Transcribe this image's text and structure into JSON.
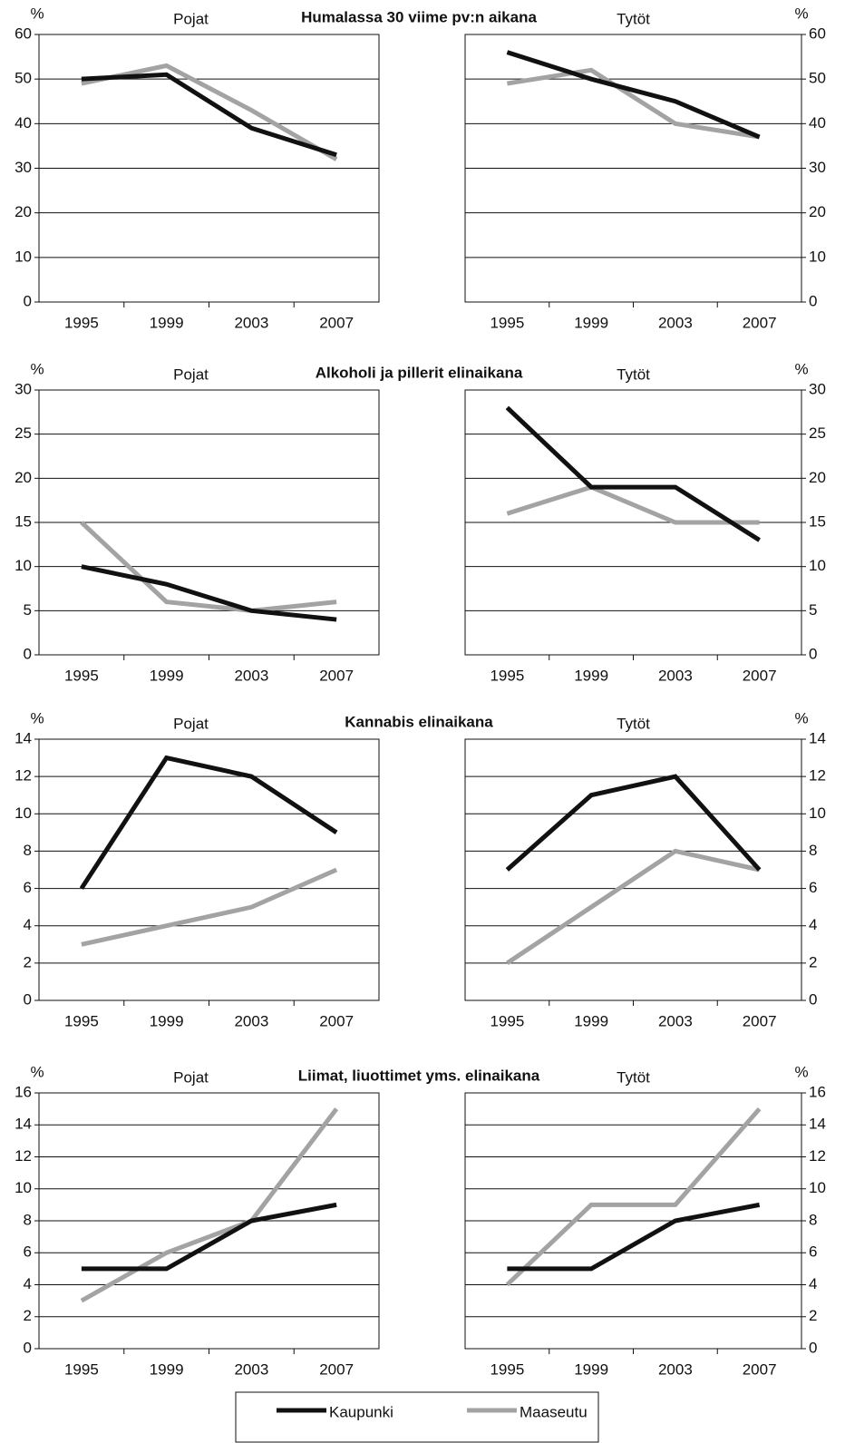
{
  "section_titles": [
    "Humalassa 30 viime pv:n aikana",
    "Alkoholi ja pillerit elinaikana",
    "Kannabis elinaikana",
    "Liimat, liuottimet yms. elinaikana"
  ],
  "legend": [
    {
      "name": "Kaupunki",
      "color": "#111111"
    },
    {
      "name": "Maaseutu",
      "color": "#a3a3a3"
    }
  ],
  "chart_data": [
    {
      "type": "line",
      "title": "Pojat",
      "unit_label": "%",
      "y_axis_side": "left",
      "grid": true,
      "categories": [
        "1995",
        "1999",
        "2003",
        "2007"
      ],
      "ylim": [
        0,
        60
      ],
      "yticks": [
        0,
        10,
        20,
        30,
        40,
        50,
        60
      ],
      "series": [
        {
          "color": "#111111",
          "values": [
            50,
            51,
            39,
            33
          ]
        },
        {
          "color": "#a3a3a3",
          "values": [
            49,
            53,
            43,
            32
          ]
        }
      ]
    },
    {
      "type": "line",
      "title": "Tytöt",
      "unit_label": "%",
      "y_axis_side": "right",
      "grid": true,
      "categories": [
        "1995",
        "1999",
        "2003",
        "2007"
      ],
      "ylim": [
        0,
        60
      ],
      "yticks": [
        0,
        10,
        20,
        30,
        40,
        50,
        60
      ],
      "series": [
        {
          "color": "#111111",
          "values": [
            56,
            50,
            45,
            37
          ]
        },
        {
          "color": "#a3a3a3",
          "values": [
            49,
            52,
            40,
            37
          ]
        }
      ]
    },
    {
      "type": "line",
      "title": "Pojat",
      "unit_label": "%",
      "y_axis_side": "left",
      "grid": true,
      "categories": [
        "1995",
        "1999",
        "2003",
        "2007"
      ],
      "ylim": [
        0,
        30
      ],
      "yticks": [
        0,
        5,
        10,
        15,
        20,
        25,
        30
      ],
      "series": [
        {
          "color": "#111111",
          "values": [
            10,
            8,
            5,
            4
          ]
        },
        {
          "color": "#a3a3a3",
          "values": [
            15,
            6,
            5,
            6
          ]
        }
      ]
    },
    {
      "type": "line",
      "title": "Tytöt",
      "unit_label": "%",
      "y_axis_side": "right",
      "grid": true,
      "categories": [
        "1995",
        "1999",
        "2003",
        "2007"
      ],
      "ylim": [
        0,
        30
      ],
      "yticks": [
        0,
        5,
        10,
        15,
        20,
        25,
        30
      ],
      "series": [
        {
          "color": "#111111",
          "values": [
            28,
            19,
            19,
            13
          ]
        },
        {
          "color": "#a3a3a3",
          "values": [
            16,
            19,
            15,
            15
          ]
        }
      ]
    },
    {
      "type": "line",
      "title": "Pojat",
      "unit_label": "%",
      "y_axis_side": "left",
      "grid": true,
      "categories": [
        "1995",
        "1999",
        "2003",
        "2007"
      ],
      "ylim": [
        0,
        14
      ],
      "yticks": [
        0,
        2,
        4,
        6,
        8,
        10,
        12,
        14
      ],
      "series": [
        {
          "color": "#111111",
          "values": [
            6,
            13,
            12,
            9
          ]
        },
        {
          "color": "#a3a3a3",
          "values": [
            3,
            4,
            5,
            7
          ]
        }
      ]
    },
    {
      "type": "line",
      "title": "Tytöt",
      "unit_label": "%",
      "y_axis_side": "right",
      "grid": true,
      "categories": [
        "1995",
        "1999",
        "2003",
        "2007"
      ],
      "ylim": [
        0,
        14
      ],
      "yticks": [
        0,
        2,
        4,
        6,
        8,
        10,
        12,
        14
      ],
      "series": [
        {
          "color": "#111111",
          "values": [
            7,
            11,
            12,
            7
          ]
        },
        {
          "color": "#a3a3a3",
          "values": [
            2,
            5,
            8,
            7
          ]
        }
      ]
    },
    {
      "type": "line",
      "title": "Pojat",
      "unit_label": "%",
      "y_axis_side": "left",
      "grid": true,
      "categories": [
        "1995",
        "1999",
        "2003",
        "2007"
      ],
      "ylim": [
        0,
        16
      ],
      "yticks": [
        0,
        2,
        4,
        6,
        8,
        10,
        12,
        14,
        16
      ],
      "series": [
        {
          "color": "#111111",
          "values": [
            5,
            5,
            8,
            9
          ]
        },
        {
          "color": "#a3a3a3",
          "values": [
            3,
            6,
            8,
            15
          ]
        }
      ]
    },
    {
      "type": "line",
      "title": "Tytöt",
      "unit_label": "%",
      "y_axis_side": "right",
      "grid": true,
      "categories": [
        "1995",
        "1999",
        "2003",
        "2007"
      ],
      "ylim": [
        0,
        16
      ],
      "yticks": [
        0,
        2,
        4,
        6,
        8,
        10,
        12,
        14,
        16
      ],
      "series": [
        {
          "color": "#111111",
          "values": [
            5,
            5,
            8,
            9
          ]
        },
        {
          "color": "#a3a3a3",
          "values": [
            4,
            9,
            9,
            15
          ]
        }
      ]
    }
  ]
}
